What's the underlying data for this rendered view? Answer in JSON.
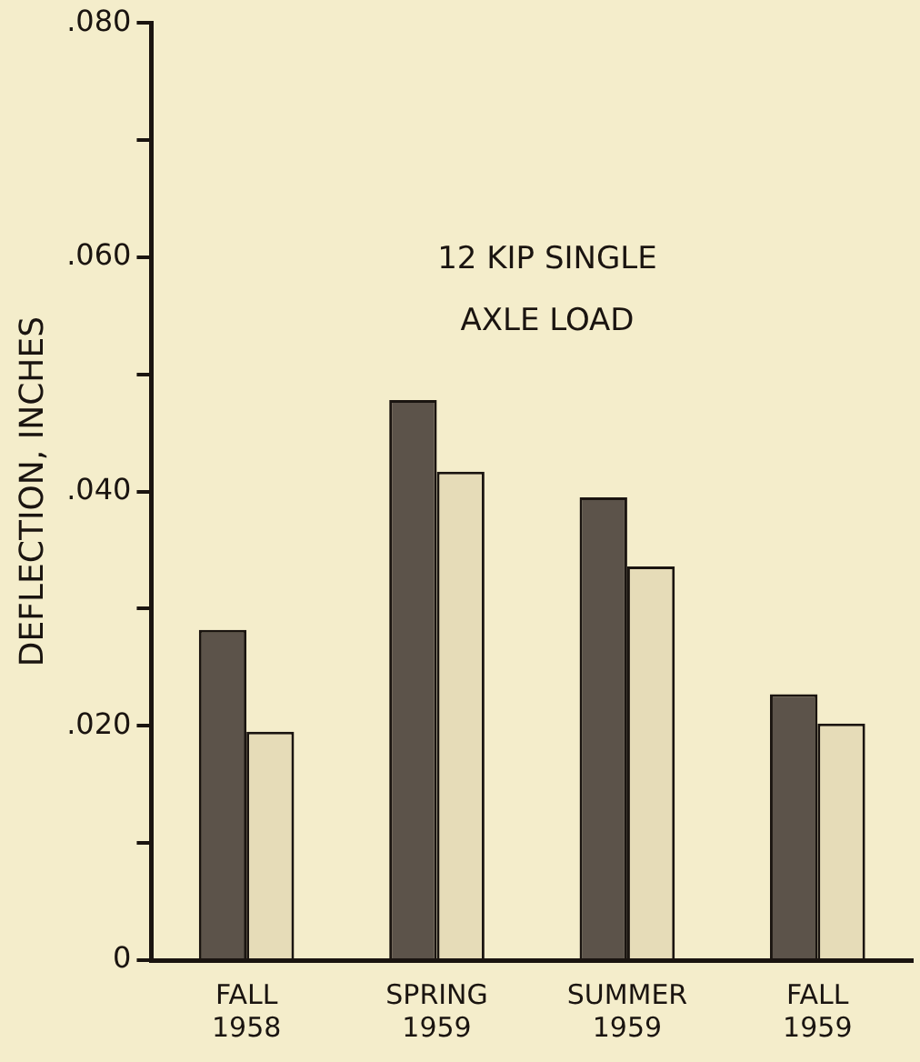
{
  "chart_data": {
    "type": "bar",
    "ylabel": "DEFLECTION, INCHES",
    "annotations": [
      "12 KIP SINGLE\nAXLE LOAD"
    ],
    "categories": [
      "FALL\n1958",
      "SPRING\n1959",
      "SUMMER\n1959",
      "FALL\n1959"
    ],
    "series": [
      {
        "color": "#5c534a",
        "values": [
          0.0282,
          0.0478,
          0.0395,
          0.0227
        ]
      },
      {
        "color": "#e6dcb8",
        "values": [
          0.0195,
          0.0417,
          0.0336,
          0.0202
        ]
      }
    ],
    "ylim": [
      0,
      0.08
    ],
    "yticks": [
      {
        "value": 0,
        "label": "0"
      },
      {
        "value": 0.01,
        "label": null
      },
      {
        "value": 0.02,
        "label": ".020"
      },
      {
        "value": 0.03,
        "label": null
      },
      {
        "value": 0.04,
        "label": ".040"
      },
      {
        "value": 0.05,
        "label": null
      },
      {
        "value": 0.06,
        "label": ".060"
      },
      {
        "value": 0.07,
        "label": null
      },
      {
        "value": 0.08,
        "label": ".080"
      }
    ],
    "grid": false,
    "legend": false
  }
}
